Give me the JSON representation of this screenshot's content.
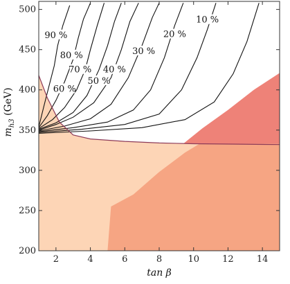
{
  "chart_data": {
    "type": "contour",
    "xlabel": "tan β",
    "ylabel_main": "m",
    "ylabel_sub": "h3",
    "ylabel_unit": " (GeV)",
    "xlim": [
      1,
      15
    ],
    "ylim": [
      200,
      510
    ],
    "xticks": [
      2,
      4,
      6,
      8,
      10,
      12,
      14
    ],
    "yticks": [
      200,
      250,
      300,
      350,
      400,
      450,
      500
    ],
    "grid": false,
    "regions": [
      {
        "name": "light-region",
        "color": "#fdd5b6",
        "points": [
          [
            1,
            200
          ],
          [
            1,
            418
          ],
          [
            1.5,
            390
          ],
          [
            2.2,
            360
          ],
          [
            3,
            344
          ],
          [
            4,
            339
          ],
          [
            6,
            336
          ],
          [
            8,
            334
          ],
          [
            10,
            333
          ],
          [
            15,
            332
          ],
          [
            15,
            200
          ]
        ]
      },
      {
        "name": "mid-region",
        "color": "#f6a583",
        "points": [
          [
            5,
            200
          ],
          [
            5.2,
            255
          ],
          [
            6.5,
            270
          ],
          [
            8,
            298
          ],
          [
            9.5,
            322
          ],
          [
            10.5,
            335
          ],
          [
            15,
            333
          ],
          [
            15,
            200
          ]
        ]
      },
      {
        "name": "dark-region",
        "color": "#ee8278",
        "points": [
          [
            9.4,
            333
          ],
          [
            10.5,
            352
          ],
          [
            12,
            375
          ],
          [
            13.5,
            400
          ],
          [
            15,
            421
          ],
          [
            15,
            333
          ]
        ]
      }
    ],
    "boundary_line": {
      "color": "#8c3a58",
      "points": [
        [
          1,
          418
        ],
        [
          1.5,
          390
        ],
        [
          2.2,
          360
        ],
        [
          3,
          344
        ],
        [
          4,
          339
        ],
        [
          6,
          336
        ],
        [
          8,
          334
        ],
        [
          10,
          333
        ],
        [
          15,
          332
        ]
      ]
    },
    "contours": [
      {
        "label": "90 %",
        "label_at": [
          2,
          468
        ],
        "points": [
          [
            1,
            354
          ],
          [
            1.3,
            380
          ],
          [
            1.6,
            405
          ],
          [
            1.9,
            430
          ],
          [
            2.1,
            455
          ],
          [
            2.4,
            480
          ],
          [
            2.8,
            505
          ]
        ]
      },
      {
        "label": "80 %",
        "label_at": [
          2.9,
          443
        ],
        "points": [
          [
            1,
            353
          ],
          [
            1.5,
            368
          ],
          [
            2,
            387
          ],
          [
            2.5,
            410
          ],
          [
            3,
            438
          ],
          [
            3.3,
            465
          ],
          [
            3.6,
            488
          ],
          [
            4,
            508
          ]
        ]
      },
      {
        "label": "70 %",
        "label_at": [
          3.4,
          425
        ],
        "points": [
          [
            1,
            352
          ],
          [
            1.8,
            363
          ],
          [
            2.5,
            378
          ],
          [
            3.2,
            400
          ],
          [
            3.7,
            425
          ],
          [
            4,
            450
          ],
          [
            4.4,
            480
          ],
          [
            4.8,
            508
          ]
        ]
      },
      {
        "label": "60 %",
        "label_at": [
          2.5,
          401
        ],
        "points": [
          [
            1,
            351
          ],
          [
            2,
            359
          ],
          [
            3,
            372
          ],
          [
            3.8,
            393
          ],
          [
            4.5,
            425
          ],
          [
            5,
            455
          ],
          [
            5.4,
            485
          ],
          [
            5.8,
            508
          ]
        ]
      },
      {
        "label": "50 %",
        "label_at": [
          4.5,
          411
        ],
        "points": [
          [
            1,
            350
          ],
          [
            2,
            357
          ],
          [
            3,
            366
          ],
          [
            4.2,
            384
          ],
          [
            5.2,
            415
          ],
          [
            5.8,
            450
          ],
          [
            6.3,
            485
          ],
          [
            6.8,
            508
          ]
        ]
      },
      {
        "label": "40 %",
        "label_at": [
          5.4,
          425
        ],
        "points": [
          [
            1,
            349
          ],
          [
            2.5,
            355
          ],
          [
            4,
            364
          ],
          [
            5.2,
            382
          ],
          [
            6.2,
            415
          ],
          [
            7,
            455
          ],
          [
            7.6,
            490
          ],
          [
            8,
            508
          ]
        ]
      },
      {
        "label": "30 %",
        "label_at": [
          7.1,
          448
        ],
        "points": [
          [
            1,
            348
          ],
          [
            3,
            353
          ],
          [
            5,
            360
          ],
          [
            6.5,
            375
          ],
          [
            7.5,
            400
          ],
          [
            8.3,
            440
          ],
          [
            8.9,
            480
          ],
          [
            9.4,
            508
          ]
        ]
      },
      {
        "label": "20 %",
        "label_at": [
          8.9,
          469
        ],
        "points": [
          [
            1,
            347
          ],
          [
            3.5,
            351
          ],
          [
            6,
            357
          ],
          [
            8,
            370
          ],
          [
            9.3,
            400
          ],
          [
            10.2,
            440
          ],
          [
            10.8,
            475
          ],
          [
            11.3,
            508
          ]
        ]
      },
      {
        "label": "10 %",
        "label_at": [
          10.8,
          487
        ],
        "points": [
          [
            1,
            346
          ],
          [
            4,
            349
          ],
          [
            7,
            353
          ],
          [
            9.5,
            363
          ],
          [
            11.2,
            385
          ],
          [
            12.3,
            420
          ],
          [
            13.1,
            460
          ],
          [
            13.8,
            508
          ]
        ]
      }
    ]
  }
}
